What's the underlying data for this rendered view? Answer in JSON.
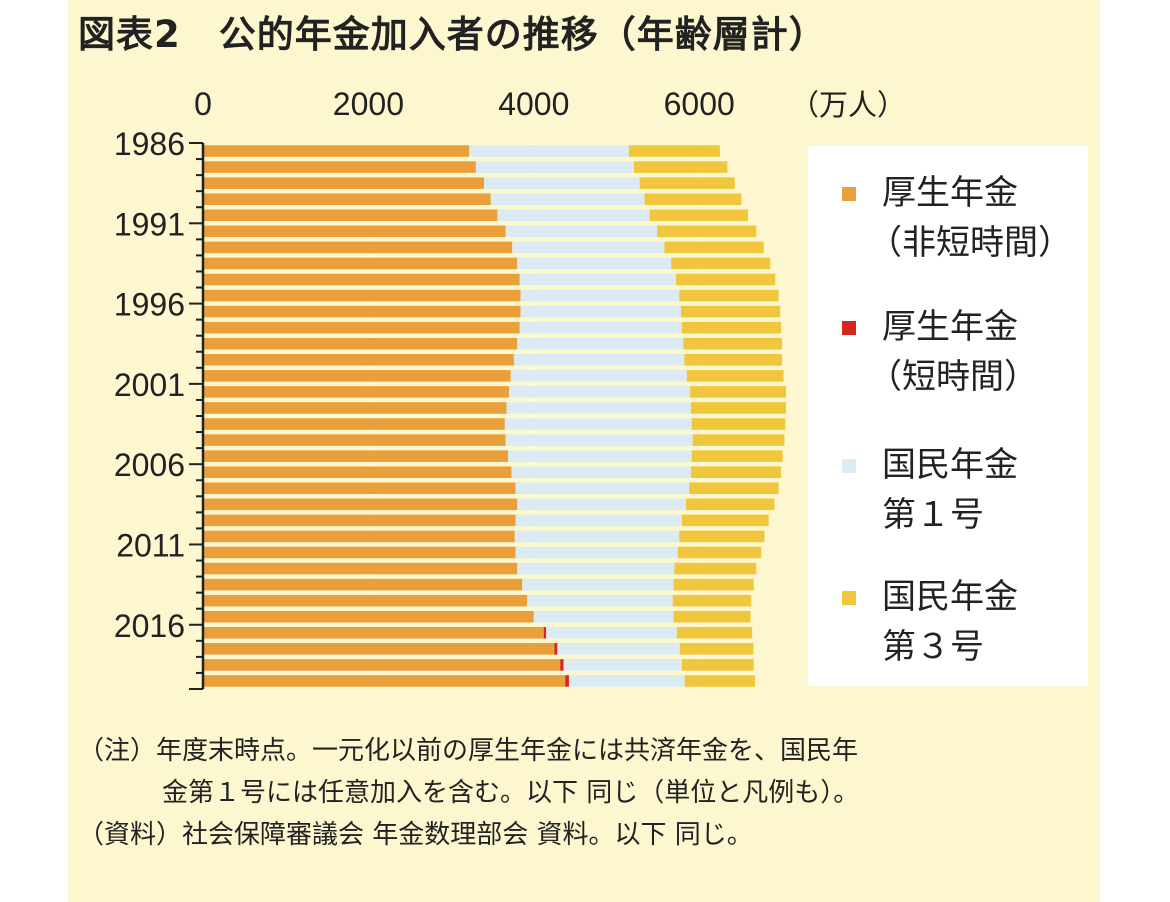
{
  "title": "図表2　公的年金加入者の推移（年齢層計）",
  "unit_label": "（万人）",
  "colors": {
    "panel_bg": "#fdf7d0",
    "kousei_hitanjikan": "#e9a03a",
    "kousei_tanjikan": "#d7261e",
    "kokumin_1": "#dcebf3",
    "kokumin_3": "#f0c63c"
  },
  "legend": [
    {
      "lines": [
        "厚生年金",
        "（非短時間）"
      ],
      "color": "#e9a03a"
    },
    {
      "lines": [
        "厚生年金",
        "（短時間）"
      ],
      "color": "#d7261e"
    },
    {
      "lines": [
        "国民年金",
        "第１号"
      ],
      "color": "#dcebf3"
    },
    {
      "lines": [
        "国民年金",
        "第３号"
      ],
      "color": "#f0c63c"
    }
  ],
  "notes": {
    "line1": "（注）年度末時点。一元化以前の厚生年金には共済年金を、国民年",
    "line2": "金第１号には任意加入を含む。以下 同じ（単位と凡例も）。",
    "line3": "（資料）社会保障審議会 年金数理部会 資料。以下 同じ。"
  },
  "chart_data": {
    "type": "bar",
    "orientation": "horizontal",
    "stacked": true,
    "x_ticks": [
      "0",
      "2000",
      "4000",
      "6000"
    ],
    "xlim": [
      0,
      7000
    ],
    "y_tick_labels": [
      "1986",
      "1991",
      "1996",
      "2001",
      "2006",
      "2011",
      "2016"
    ],
    "categories": [
      1986,
      1987,
      1988,
      1989,
      1990,
      1991,
      1992,
      1993,
      1994,
      1995,
      1996,
      1997,
      1998,
      1999,
      2000,
      2001,
      2002,
      2003,
      2004,
      2005,
      2006,
      2007,
      2008,
      2009,
      2010,
      2011,
      2012,
      2013,
      2014,
      2015,
      2016,
      2017,
      2018,
      2019
    ],
    "series": [
      {
        "name": "厚生年金（非短時間）",
        "values": [
          3220,
          3300,
          3400,
          3480,
          3560,
          3660,
          3740,
          3800,
          3830,
          3840,
          3840,
          3830,
          3800,
          3760,
          3720,
          3700,
          3670,
          3650,
          3660,
          3690,
          3730,
          3780,
          3800,
          3780,
          3770,
          3780,
          3800,
          3860,
          3920,
          4000,
          4120,
          4250,
          4320,
          4380
        ]
      },
      {
        "name": "厚生年金（短時間）",
        "values": [
          0,
          0,
          0,
          0,
          0,
          0,
          0,
          0,
          0,
          0,
          0,
          0,
          0,
          0,
          0,
          0,
          0,
          0,
          0,
          0,
          0,
          0,
          0,
          0,
          0,
          0,
          0,
          0,
          0,
          0,
          30,
          35,
          40,
          45
        ]
      },
      {
        "name": "国民年金第１号",
        "values": [
          1930,
          1910,
          1880,
          1860,
          1840,
          1830,
          1840,
          1860,
          1890,
          1920,
          1940,
          1960,
          2010,
          2060,
          2130,
          2190,
          2230,
          2260,
          2260,
          2220,
          2170,
          2100,
          2040,
          2010,
          1990,
          1960,
          1900,
          1830,
          1760,
          1690,
          1580,
          1480,
          1430,
          1400
        ]
      },
      {
        "name": "国民年金第３号",
        "values": [
          1100,
          1130,
          1150,
          1170,
          1190,
          1200,
          1200,
          1200,
          1200,
          1200,
          1200,
          1200,
          1190,
          1180,
          1170,
          1160,
          1150,
          1130,
          1110,
          1100,
          1090,
          1080,
          1070,
          1050,
          1030,
          1010,
          990,
          970,
          950,
          930,
          910,
          890,
          870,
          850
        ]
      }
    ]
  }
}
